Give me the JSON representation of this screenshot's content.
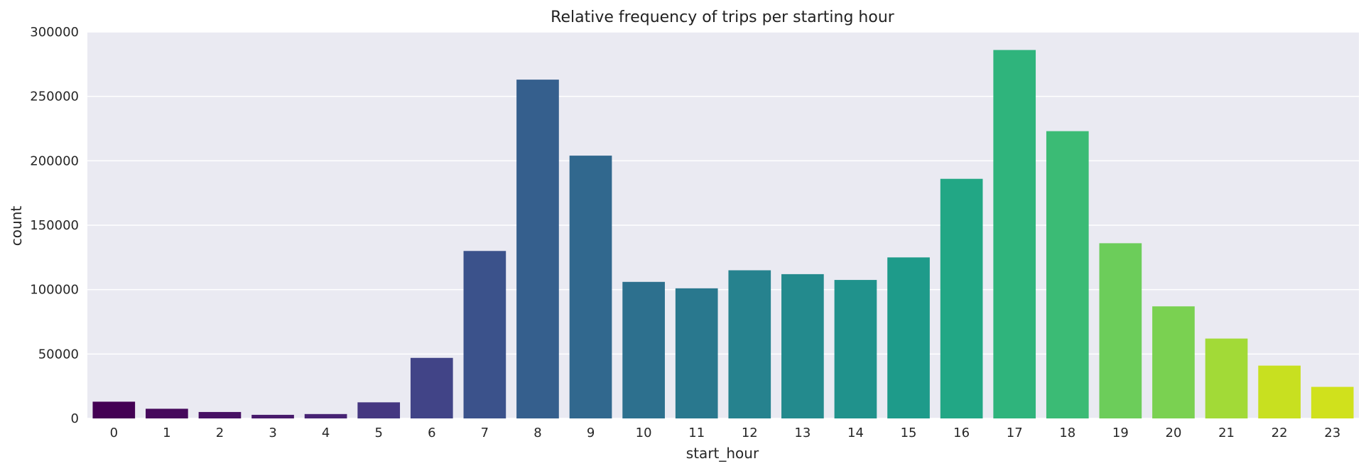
{
  "chart_data": {
    "type": "bar",
    "title": "Relative frequency of trips per starting hour",
    "xlabel": "start_hour",
    "ylabel": "count",
    "categories": [
      "0",
      "1",
      "2",
      "3",
      "4",
      "5",
      "6",
      "7",
      "8",
      "9",
      "10",
      "11",
      "12",
      "13",
      "14",
      "15",
      "16",
      "17",
      "18",
      "19",
      "20",
      "21",
      "22",
      "23"
    ],
    "values": [
      13000,
      7500,
      5000,
      2800,
      3400,
      12500,
      47000,
      130000,
      263000,
      204000,
      106000,
      101000,
      115000,
      112000,
      107500,
      125000,
      186000,
      286000,
      223000,
      136000,
      87000,
      62000,
      41000,
      24500
    ],
    "ylim": [
      0,
      300000
    ],
    "yticks": [
      "0",
      "50000",
      "100000",
      "150000",
      "200000",
      "250000",
      "300000"
    ],
    "grid": "horizontal",
    "colors": [
      "#440154",
      "#46085c",
      "#471164",
      "#481a6c",
      "#472374",
      "#453781",
      "#414487",
      "#3b528b",
      "#355f8d",
      "#31688e",
      "#2d708e",
      "#29788e",
      "#26828e",
      "#238a8d",
      "#20928c",
      "#1e9b8a",
      "#22a785",
      "#2fb47c",
      "#3bbb75",
      "#6ccd5a",
      "#7ad151",
      "#a2da37",
      "#c8e020",
      "#d0e11c"
    ],
    "plot_background": "#eaeaf2",
    "grid_color": "#ffffff"
  }
}
